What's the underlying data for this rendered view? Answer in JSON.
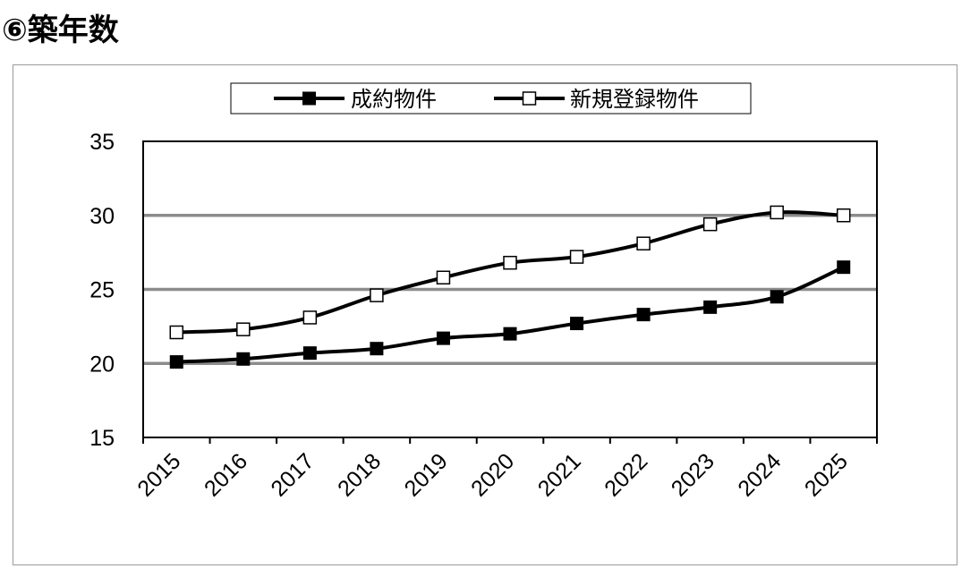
{
  "heading": "⑥築年数",
  "colors": {
    "grid": "#8c8c8c",
    "line": "#000000",
    "axis": "#000000"
  },
  "chart_data": {
    "type": "line",
    "title": "",
    "xlabel": "",
    "ylabel": "",
    "categories": [
      "2015",
      "2016",
      "2017",
      "2018",
      "2019",
      "2020",
      "2021",
      "2022",
      "2023",
      "2024",
      "2025"
    ],
    "ylim": [
      15,
      35
    ],
    "yticks": [
      15,
      20,
      25,
      30,
      35
    ],
    "grid": "horizontal",
    "legend": "top-center",
    "series": [
      {
        "name": "成約物件",
        "marker": "filled-square",
        "values": [
          20.1,
          20.3,
          20.7,
          21.0,
          21.7,
          22.0,
          22.7,
          23.3,
          23.8,
          24.5,
          26.5
        ]
      },
      {
        "name": "新規登録物件",
        "marker": "open-square",
        "values": [
          22.1,
          22.3,
          23.1,
          24.6,
          25.8,
          26.8,
          27.2,
          28.1,
          29.4,
          30.2,
          30.0
        ]
      }
    ]
  }
}
